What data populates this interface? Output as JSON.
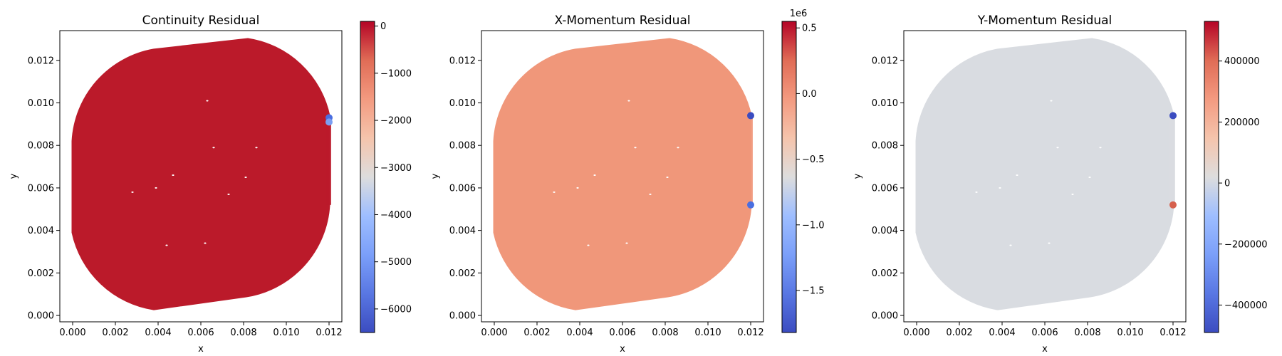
{
  "figure": {
    "background": "#ffffff"
  },
  "chart_data": [
    {
      "type": "scatter",
      "title": "Continuity Residual",
      "xlabel": "x",
      "ylabel": "y",
      "xlim": [
        -0.0006,
        0.0126
      ],
      "ylim": [
        -0.0003,
        0.0134
      ],
      "xticks": [
        "0.000",
        "0.002",
        "0.004",
        "0.006",
        "0.008",
        "0.010",
        "0.012"
      ],
      "yticks": [
        "0.000",
        "0.002",
        "0.004",
        "0.006",
        "0.008",
        "0.010",
        "0.012"
      ],
      "domain_fill": "#bb1a2a",
      "colormap": "coolwarm",
      "colorbar": {
        "range": [
          -6500,
          100
        ],
        "ticks": [
          0,
          -1000,
          -2000,
          -3000,
          -4000,
          -5000,
          -6000
        ],
        "tick_labels": [
          "0",
          "−1000",
          "−2000",
          "−3000",
          "−4000",
          "−5000",
          "−6000"
        ],
        "offset_label": ""
      },
      "hotspots": [
        {
          "x": 0.012,
          "y": 0.0093,
          "color": "#4a6ee0"
        },
        {
          "x": 0.012,
          "y": 0.0091,
          "color": "#7b9ff2"
        }
      ]
    },
    {
      "type": "scatter",
      "title": "X-Momentum Residual",
      "xlabel": "x",
      "ylabel": "y",
      "xlim": [
        -0.0006,
        0.0126
      ],
      "ylim": [
        -0.0003,
        0.0134
      ],
      "xticks": [
        "0.000",
        "0.002",
        "0.004",
        "0.006",
        "0.008",
        "0.010",
        "0.012"
      ],
      "yticks": [
        "0.000",
        "0.002",
        "0.004",
        "0.006",
        "0.008",
        "0.010",
        "0.012"
      ],
      "domain_fill": "#f0977a",
      "colormap": "coolwarm",
      "colorbar": {
        "range": [
          -1.82,
          0.55
        ],
        "ticks": [
          0.5,
          0.0,
          -0.5,
          -1.0,
          -1.5
        ],
        "tick_labels": [
          "0.5",
          "0.0",
          "−0.5",
          "−1.0",
          "−1.5"
        ],
        "offset_label": "1e6"
      },
      "hotspots": [
        {
          "x": 0.012,
          "y": 0.0094,
          "color": "#3b4cc0"
        },
        {
          "x": 0.012,
          "y": 0.0052,
          "color": "#4a6ee0"
        }
      ]
    },
    {
      "type": "scatter",
      "title": "Y-Momentum Residual",
      "xlabel": "x",
      "ylabel": "y",
      "xlim": [
        -0.0006,
        0.0126
      ],
      "ylim": [
        -0.0003,
        0.0134
      ],
      "xticks": [
        "0.000",
        "0.002",
        "0.004",
        "0.006",
        "0.008",
        "0.010",
        "0.012"
      ],
      "yticks": [
        "0.000",
        "0.002",
        "0.004",
        "0.006",
        "0.008",
        "0.010",
        "0.012"
      ],
      "domain_fill": "#d9dce1",
      "colormap": "coolwarm",
      "colorbar": {
        "range": [
          -490000,
          530000
        ],
        "ticks": [
          400000,
          200000,
          0,
          -200000,
          -400000
        ],
        "tick_labels": [
          "400000",
          "200000",
          "0",
          "−200000",
          "−400000"
        ],
        "offset_label": ""
      },
      "hotspots": [
        {
          "x": 0.012,
          "y": 0.0094,
          "color": "#3b4cc0"
        },
        {
          "x": 0.012,
          "y": 0.0052,
          "color": "#d6604d"
        }
      ]
    }
  ]
}
